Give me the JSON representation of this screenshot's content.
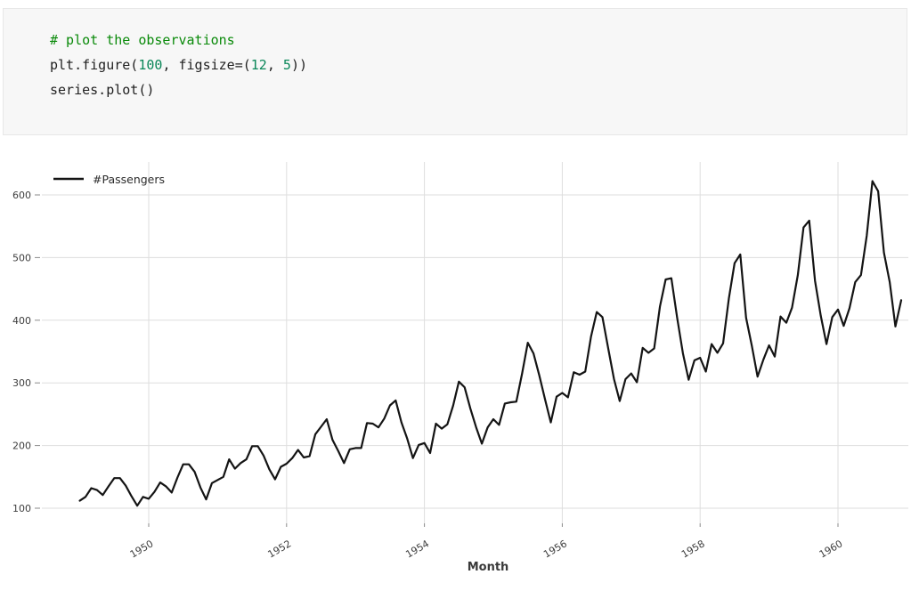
{
  "code_cell": {
    "language": "python",
    "lines": [
      {
        "tokens": [
          {
            "text": "# plot the observations",
            "type": "comment"
          }
        ]
      },
      {
        "tokens": [
          {
            "text": "plt.figure(",
            "type": "plain"
          },
          {
            "text": "100",
            "type": "number"
          },
          {
            "text": ", figsize=(",
            "type": "plain"
          },
          {
            "text": "12",
            "type": "number"
          },
          {
            "text": ", ",
            "type": "plain"
          },
          {
            "text": "5",
            "type": "number"
          },
          {
            "text": "))",
            "type": "plain"
          }
        ]
      },
      {
        "tokens": [
          {
            "text": "series.plot()",
            "type": "plain"
          }
        ]
      }
    ]
  },
  "colors": {
    "comment": "#0a8a0a",
    "number": "#098658",
    "code_text": "#1f1f1f",
    "cell_bg": "#f7f7f7",
    "cell_border": "#e7e7e7",
    "series_line": "#141414",
    "grid": "#dedede",
    "tick_mark": "#8a8a8a",
    "tick_label": "#3d3d3d",
    "axis_label": "#3a3a3a"
  },
  "chart_data": {
    "type": "line",
    "title": "",
    "xlabel": "Month",
    "ylabel": "",
    "grid": true,
    "legend_position": "upper left",
    "legend": [
      {
        "label": "#Passengers"
      }
    ],
    "x_monthly_start": "1949-01",
    "x_monthly_end": "1960-12",
    "x_start_year": 1949,
    "points_per_year": 12,
    "x_tick_labels": [
      "1950",
      "1952",
      "1954",
      "1956",
      "1958",
      "1960"
    ],
    "y_ticks": [
      100,
      200,
      300,
      400,
      500,
      600
    ],
    "y_tick_labels": [
      "100",
      "200",
      "300",
      "400",
      "500",
      "600"
    ],
    "ylim": [
      76,
      652
    ],
    "series": [
      {
        "name": "#Passengers",
        "values": [
          112,
          118,
          132,
          129,
          121,
          135,
          148,
          148,
          136,
          119,
          104,
          118,
          115,
          126,
          141,
          135,
          125,
          149,
          170,
          170,
          158,
          133,
          114,
          140,
          145,
          150,
          178,
          163,
          172,
          178,
          199,
          199,
          184,
          162,
          146,
          166,
          171,
          180,
          193,
          181,
          183,
          218,
          230,
          242,
          209,
          191,
          172,
          194,
          196,
          196,
          236,
          235,
          229,
          243,
          264,
          272,
          237,
          211,
          180,
          201,
          204,
          188,
          235,
          227,
          234,
          264,
          302,
          293,
          259,
          229,
          203,
          229,
          242,
          233,
          267,
          269,
          270,
          315,
          364,
          347,
          312,
          274,
          237,
          278,
          284,
          277,
          317,
          313,
          318,
          374,
          413,
          405,
          355,
          306,
          271,
          306,
          315,
          301,
          356,
          348,
          355,
          422,
          465,
          467,
          404,
          347,
          305,
          336,
          340,
          318,
          362,
          348,
          363,
          435,
          491,
          505,
          404,
          359,
          310,
          337,
          360,
          342,
          406,
          396,
          420,
          472,
          548,
          559,
          463,
          407,
          362,
          405,
          417,
          391,
          419,
          461,
          472,
          535,
          622,
          606,
          508,
          461,
          390,
          432
        ]
      }
    ]
  }
}
